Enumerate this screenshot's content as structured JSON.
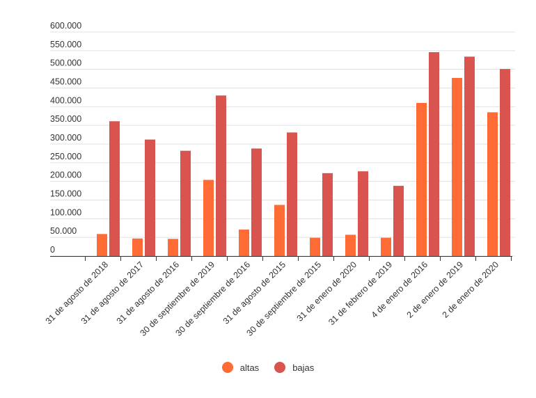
{
  "chart_data": {
    "type": "bar",
    "title": "",
    "xlabel": "",
    "ylabel": "",
    "ylim": [
      0,
      600000
    ],
    "yticks": [
      0,
      50000,
      100000,
      150000,
      200000,
      250000,
      300000,
      350000,
      400000,
      450000,
      500000,
      550000,
      600000
    ],
    "ytick_labels": [
      "0",
      "50.000",
      "100.000",
      "150.000",
      "200.000",
      "250.000",
      "300.000",
      "350.000",
      "400.000",
      "450.000",
      "500.000",
      "550.000",
      "600.000"
    ],
    "grid": true,
    "legend_position": "bottom",
    "categories": [
      "31 de agosto de 2018",
      "31 de agosto de 2017",
      "31 de agosto de 2016",
      "30 de septiembre de 2019",
      "30 de septiembre de 2016",
      "31 de agosto de 2015",
      "30 de septiembre de 2015",
      "31 de enero de 2020",
      "31 de febrero de 2019",
      "4 de enero de 2016",
      "2 de enero de 2019",
      "2 de enero de 2020"
    ],
    "series": [
      {
        "name": "altas",
        "color": "#ff6b35",
        "values": [
          59000,
          47000,
          46000,
          204000,
          71000,
          137000,
          49000,
          57000,
          49000,
          410000,
          477000,
          385000
        ]
      },
      {
        "name": "bajas",
        "color": "#d9534f",
        "values": [
          361000,
          312000,
          282000,
          430000,
          288000,
          331000,
          222000,
          227000,
          188000,
          546000,
          534000,
          501000
        ]
      }
    ]
  }
}
